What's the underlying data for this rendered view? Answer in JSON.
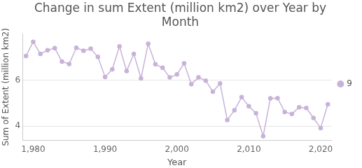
{
  "chart_data": {
    "type": "line",
    "title": "Change in sum Extent (million km2) over Year by Month",
    "x_label": "Year",
    "y_label": "Sum of Extent (million km2)",
    "x": [
      1979,
      1980,
      1981,
      1982,
      1983,
      1984,
      1985,
      1986,
      1987,
      1988,
      1989,
      1990,
      1991,
      1992,
      1993,
      1994,
      1995,
      1996,
      1997,
      1998,
      1999,
      2000,
      2001,
      2002,
      2003,
      2004,
      2005,
      2006,
      2007,
      2008,
      2009,
      2010,
      2011,
      2012,
      2013,
      2014,
      2015,
      2016,
      2017,
      2018,
      2019,
      2020,
      2021
    ],
    "series": [
      {
        "name": "9",
        "color": "#c8b2d8",
        "marker": "circle",
        "values": [
          7.05,
          7.67,
          7.14,
          7.3,
          7.39,
          6.81,
          6.7,
          7.41,
          7.28,
          7.37,
          7.01,
          6.14,
          6.47,
          7.47,
          6.4,
          7.14,
          6.08,
          7.58,
          6.69,
          6.54,
          6.12,
          6.25,
          6.73,
          5.83,
          6.12,
          5.98,
          5.5,
          5.86,
          4.27,
          4.69,
          5.26,
          4.87,
          4.56,
          3.57,
          5.21,
          5.22,
          4.62,
          4.53,
          4.82,
          4.79,
          4.36,
          3.92,
          4.95
        ]
      }
    ],
    "xlim": [
      1978.5,
      2021.5
    ],
    "xticks": [
      {
        "value": 1980,
        "label": "1,980"
      },
      {
        "value": 1990,
        "label": "1,990"
      },
      {
        "value": 2000,
        "label": "2,000"
      },
      {
        "value": 2010,
        "label": "2,010"
      },
      {
        "value": 2020,
        "label": "2,020"
      }
    ],
    "ylim": [
      3.4,
      8
    ],
    "yticks": [
      4,
      6
    ],
    "grid": true,
    "legend": "right"
  }
}
